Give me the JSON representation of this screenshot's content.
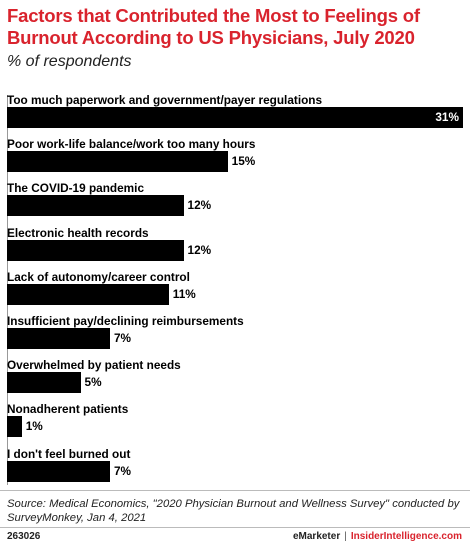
{
  "header": {
    "title": "Factors that Contributed the Most to Feelings of Burnout According to US Physicians, July 2020",
    "subtitle": "% of respondents"
  },
  "chart_data": {
    "type": "bar",
    "orientation": "horizontal",
    "categories": [
      "Too much paperwork and government/payer regulations",
      "Poor work-life balance/work too many hours",
      "The COVID-19 pandemic",
      "Electronic health records",
      "Lack of autonomy/career control",
      "Insufficient pay/declining reimbursements",
      "Overwhelmed by patient needs",
      "Nonadherent patients",
      "I don't feel burned out"
    ],
    "values": [
      31,
      15,
      12,
      12,
      11,
      7,
      5,
      1,
      7
    ],
    "value_labels": [
      "31%",
      "15%",
      "12%",
      "12%",
      "11%",
      "7%",
      "5%",
      "1%",
      "7%"
    ],
    "title": "Factors that Contributed the Most to Feelings of Burnout According to US Physicians, July 2020",
    "xlabel": "",
    "ylabel": "",
    "xlim": [
      0,
      31
    ],
    "grid": false,
    "legend": "none",
    "bar_color": "#000000"
  },
  "footer": {
    "source": "Source: Medical Economics, \"2020 Physician Burnout and Wellness Survey\" conducted by SurveyMonkey, Jan 4, 2021",
    "chart_id": "263026",
    "brand_emarketer": "eMarketer",
    "brand_separator": "|",
    "brand_insider": "InsiderIntelligence.com"
  },
  "colors": {
    "title": "#d9232d",
    "bar": "#000000",
    "value_inside": "#ffffff"
  }
}
